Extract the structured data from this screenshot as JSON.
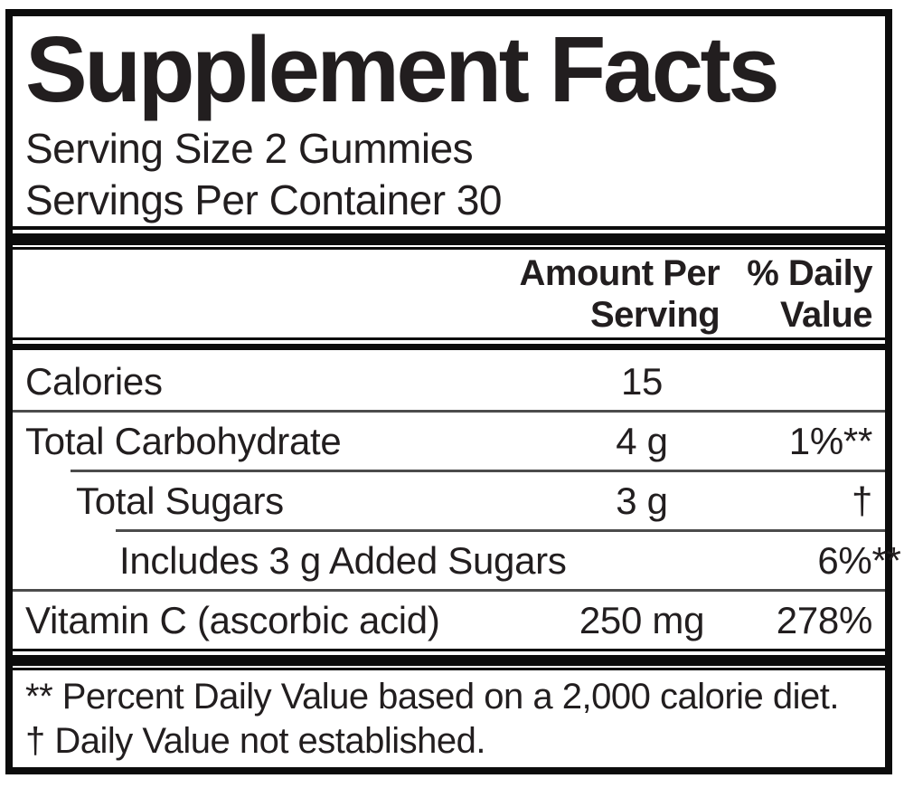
{
  "label": {
    "title": "Supplement Facts",
    "serving_size": "Serving Size 2 Gummies",
    "servings_per_container": "Servings Per Container 30",
    "columns": {
      "amount": "Amount Per\nServing",
      "daily_value": "% Daily\nValue"
    },
    "rows": [
      {
        "name": "Calories",
        "amount": "15",
        "daily_value": ""
      },
      {
        "name": "Total Carbohydrate",
        "amount": "4 g",
        "daily_value": "1%**"
      },
      {
        "name": "Total Sugars",
        "amount": "3 g",
        "daily_value": "†"
      },
      {
        "name": "Includes 3 g Added Sugars",
        "amount": "",
        "daily_value": "6%**"
      },
      {
        "name": "Vitamin C (ascorbic acid)",
        "amount": "250 mg",
        "daily_value": "278%"
      }
    ],
    "footnotes": [
      "** Percent Daily Value based on a 2,000 calorie diet.",
      "† Daily Value not established."
    ],
    "colors": {
      "border": "#0c0c0c",
      "separator": "#4c4c4c",
      "text": "#221e1f",
      "background": "#ffffff"
    }
  }
}
